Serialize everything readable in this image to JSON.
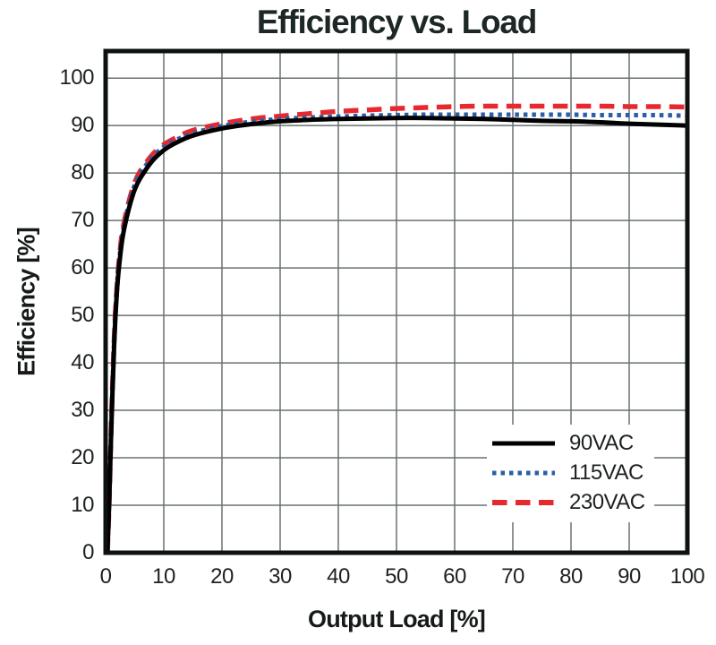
{
  "chart_data": {
    "type": "line",
    "title": "Efficiency vs. Load",
    "xlabel": "Output Load [%]",
    "ylabel": "Efficiency [%]",
    "xlim": [
      0,
      100
    ],
    "ylim": [
      0,
      105.7
    ],
    "x_ticks": [
      0,
      10,
      20,
      30,
      40,
      50,
      60,
      70,
      80,
      90,
      100
    ],
    "y_ticks": [
      0,
      10,
      20,
      30,
      40,
      50,
      60,
      70,
      80,
      90,
      100
    ],
    "grid": true,
    "legend_position": "lower-right",
    "colors": {
      "frame": "#0d1211",
      "gridline": "#6a7170",
      "text": "#1d2322",
      "background": "#ffffff"
    },
    "series": [
      {
        "name": "90VAC",
        "color": "#000000",
        "style": "solid",
        "points": [
          [
            0.3,
            0
          ],
          [
            0.6,
            10
          ],
          [
            1,
            27
          ],
          [
            1.5,
            45
          ],
          [
            2,
            56
          ],
          [
            2.5,
            62.5
          ],
          [
            3,
            67
          ],
          [
            4,
            72.5
          ],
          [
            5,
            76.5
          ],
          [
            6,
            79
          ],
          [
            8,
            82.5
          ],
          [
            10,
            84.8
          ],
          [
            12,
            86.3
          ],
          [
            15,
            87.9
          ],
          [
            20,
            89.4
          ],
          [
            25,
            90.3
          ],
          [
            30,
            90.9
          ],
          [
            35,
            91.2
          ],
          [
            40,
            91.4
          ],
          [
            45,
            91.5
          ],
          [
            50,
            91.6
          ],
          [
            55,
            91.6
          ],
          [
            60,
            91.5
          ],
          [
            65,
            91.4
          ],
          [
            70,
            91.2
          ],
          [
            75,
            91.0
          ],
          [
            80,
            90.9
          ],
          [
            85,
            90.7
          ],
          [
            90,
            90.4
          ],
          [
            95,
            90.2
          ],
          [
            100,
            90.0
          ]
        ]
      },
      {
        "name": "115VAC",
        "color": "#2a5fa8",
        "style": "dotted",
        "points": [
          [
            0.3,
            0
          ],
          [
            0.6,
            10
          ],
          [
            1,
            28
          ],
          [
            1.5,
            46
          ],
          [
            2,
            57
          ],
          [
            2.5,
            63.5
          ],
          [
            3,
            68
          ],
          [
            4,
            73.5
          ],
          [
            5,
            77.5
          ],
          [
            6,
            80
          ],
          [
            8,
            83.3
          ],
          [
            10,
            85.5
          ],
          [
            12,
            86.9
          ],
          [
            15,
            88.4
          ],
          [
            20,
            89.9
          ],
          [
            25,
            90.8
          ],
          [
            30,
            91.4
          ],
          [
            35,
            91.7
          ],
          [
            40,
            91.9
          ],
          [
            45,
            92.1
          ],
          [
            50,
            92.2
          ],
          [
            55,
            92.3
          ],
          [
            60,
            92.3
          ],
          [
            65,
            92.3
          ],
          [
            70,
            92.3
          ],
          [
            75,
            92.3
          ],
          [
            80,
            92.3
          ],
          [
            85,
            92.2
          ],
          [
            90,
            92.2
          ],
          [
            95,
            92.2
          ],
          [
            100,
            92.1
          ]
        ]
      },
      {
        "name": "230VAC",
        "color": "#e8282f",
        "style": "dashed",
        "points": [
          [
            0.3,
            0
          ],
          [
            0.6,
            10
          ],
          [
            1,
            28
          ],
          [
            1.5,
            46
          ],
          [
            2,
            57
          ],
          [
            2.5,
            64
          ],
          [
            3,
            68.5
          ],
          [
            4,
            74
          ],
          [
            5,
            78
          ],
          [
            6,
            80.5
          ],
          [
            8,
            83.8
          ],
          [
            10,
            86
          ],
          [
            12,
            87.4
          ],
          [
            15,
            89
          ],
          [
            20,
            90.4
          ],
          [
            25,
            91.4
          ],
          [
            30,
            92
          ],
          [
            35,
            92.5
          ],
          [
            40,
            93
          ],
          [
            45,
            93.3
          ],
          [
            50,
            93.6
          ],
          [
            55,
            93.8
          ],
          [
            60,
            94
          ],
          [
            65,
            94.1
          ],
          [
            70,
            94.1
          ],
          [
            75,
            94.1
          ],
          [
            80,
            94.1
          ],
          [
            85,
            94.1
          ],
          [
            90,
            94
          ],
          [
            95,
            94
          ],
          [
            100,
            93.9
          ]
        ]
      }
    ]
  }
}
